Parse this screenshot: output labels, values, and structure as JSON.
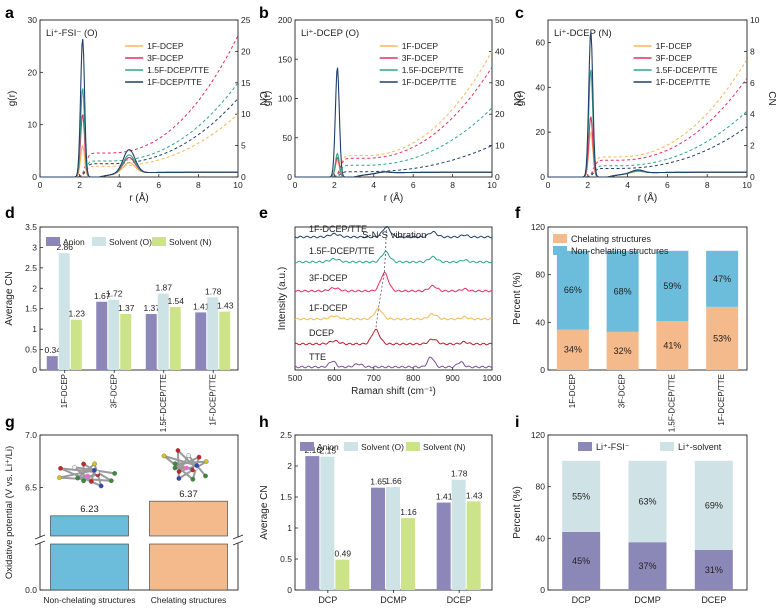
{
  "colors": {
    "f1": "#f5b75a",
    "f3": "#e2305f",
    "f15": "#2ea58a",
    "ftte": "#203f6a",
    "anion": "#8d86b8",
    "solvO": "#cde3e6",
    "solvN": "#cde38a",
    "chel": "#f4ba8b",
    "nonchel": "#6cbcdc",
    "fsi": "#8b88b8",
    "solv": "#cfe3e6"
  },
  "chart_data": [
    {
      "panel": "a",
      "type": "line",
      "title": "Li⁺-FSI⁻ (O)",
      "xlabel": "r (Å)",
      "ylabel": "g(r)",
      "y2label": "CN",
      "xlim": [
        0,
        10
      ],
      "xticks": [
        0,
        2,
        4,
        6,
        8,
        10
      ],
      "ylim": [
        0,
        30
      ],
      "yticks": [
        0,
        10,
        20,
        30
      ],
      "y2lim": [
        0,
        25
      ],
      "y2ticks": [
        0,
        5,
        10,
        15,
        20,
        25
      ],
      "legend": [
        "1F-DCEP",
        "3F-DCEP",
        "1.5F-DCEP/TTE",
        "1F-DCEP/TTE"
      ],
      "peaks": [
        6,
        12,
        17,
        26.5
      ],
      "second": [
        2.0,
        3.0,
        3.5,
        4.5
      ],
      "cn_end": [
        10,
        22.5,
        15,
        12.5
      ]
    },
    {
      "panel": "b",
      "type": "line",
      "title": "Li⁺-DCEP (O)",
      "xlabel": "r (Å)",
      "ylabel": "g(r)",
      "y2label": "CN",
      "xlim": [
        0,
        10
      ],
      "xticks": [
        0,
        2,
        4,
        6,
        8,
        10
      ],
      "ylim": [
        0,
        200
      ],
      "yticks": [
        0,
        50,
        100,
        150,
        200
      ],
      "y2lim": [
        0,
        50
      ],
      "y2ticks": [
        0,
        10,
        20,
        30,
        40,
        50
      ],
      "legend": [
        "1F-DCEP",
        "3F-DCEP",
        "1.5F-DCEP/TTE",
        "1F-DCEP/TTE"
      ],
      "peaks": [
        22,
        25,
        30,
        140
      ],
      "second": [
        1.5,
        2,
        2,
        1.5
      ],
      "cn_end": [
        40,
        35,
        22,
        10
      ]
    },
    {
      "panel": "c",
      "type": "line",
      "title": "Li⁺-DCEP (N)",
      "xlabel": "r (Å)",
      "ylabel": "g(r)",
      "y2label": "CN",
      "xlim": [
        0,
        10
      ],
      "xticks": [
        0,
        2,
        4,
        6,
        8,
        10
      ],
      "ylim": [
        0,
        70
      ],
      "yticks": [
        0,
        20,
        40,
        60
      ],
      "y2lim": [
        0,
        10
      ],
      "y2ticks": [
        0,
        2,
        4,
        6,
        8,
        10
      ],
      "legend": [
        "1F-DCEP",
        "3F-DCEP",
        "1.5F-DCEP/TTE",
        "1F-DCEP/TTE"
      ],
      "peaks": [
        20,
        27,
        48,
        65
      ],
      "second": [
        0.8,
        1,
        1,
        1.5
      ],
      "cn_end": [
        7.5,
        6.3,
        4.2,
        3.2
      ]
    },
    {
      "panel": "d",
      "type": "bar",
      "ylabel": "Average CN",
      "categories": [
        "1F-DCEP",
        "3F-DCEP",
        "1.5F-DCEP/TTE",
        "1F-DCEP/TTE"
      ],
      "ylim": [
        0,
        3.5
      ],
      "yticks": [
        0,
        0.5,
        1,
        1.5,
        2,
        2.5,
        3,
        3.5
      ],
      "series": [
        {
          "name": "Anion",
          "values": [
            0.34,
            1.67,
            1.37,
            1.41
          ],
          "labels": [
            "0.34",
            "1.67",
            "1.37",
            "1.41"
          ]
        },
        {
          "name": "Solvent (O)",
          "values": [
            2.86,
            1.72,
            1.87,
            1.78
          ],
          "labels": [
            "2.86",
            "1.72",
            "1.87",
            "1.78"
          ]
        },
        {
          "name": "Solvent (N)",
          "values": [
            1.23,
            1.37,
            1.54,
            1.43
          ],
          "labels": [
            "1.23",
            "1.37",
            "1.54",
            "1.43"
          ]
        }
      ]
    },
    {
      "panel": "e",
      "type": "line",
      "xlabel": "Raman shift (cm⁻¹)",
      "ylabel": "Intensity (a.u.)",
      "xlim": [
        500,
        1000
      ],
      "xticks": [
        500,
        600,
        700,
        800,
        900,
        1000
      ],
      "annotation": "S-N-S vibration",
      "traces": [
        "1F-DCEP/TTE",
        "1.5F-DCEP/TTE",
        "3F-DCEP",
        "1F-DCEP",
        "DCEP",
        "TTE"
      ],
      "trace_colors": [
        "#203f6a",
        "#2ea58a",
        "#e2305f",
        "#f5b75a",
        "#b81e2a",
        "#7d4f96"
      ],
      "peak_positions": [
        732,
        730,
        727,
        712,
        705,
        0
      ]
    },
    {
      "panel": "f",
      "type": "bar",
      "ylabel": "Percent (%)",
      "categories": [
        "1F-DCEP",
        "3F-DCEP",
        "1.5F-DCEP/TTE",
        "1F-DCEP/TTE"
      ],
      "ylim": [
        0,
        120
      ],
      "yticks": [
        0,
        40,
        80,
        120
      ],
      "series": [
        {
          "name": "Chelating structures",
          "values": [
            34,
            32,
            41,
            53
          ],
          "labels": [
            "34%",
            "32%",
            "41%",
            "53%"
          ]
        },
        {
          "name": "Non-chelating structures",
          "values": [
            66,
            68,
            59,
            47
          ],
          "labels": [
            "66%",
            "68%",
            "59%",
            "47%"
          ]
        }
      ]
    },
    {
      "panel": "g",
      "type": "bar",
      "ylabel": "Oxidative potential (V vs. Li⁺/Li)",
      "categories": [
        "Non-chelating structures",
        "Chelating structures"
      ],
      "ylim_upper": [
        6.0,
        7.0
      ],
      "ylim_lower": [
        0,
        0.5
      ],
      "yticks": [
        0.0,
        6.5,
        7.0
      ],
      "ytick_labels": [
        "0.0",
        "6.5",
        "7.0"
      ],
      "values": [
        6.23,
        6.37
      ],
      "labels": [
        "6.23",
        "6.37"
      ]
    },
    {
      "panel": "h",
      "type": "bar",
      "ylabel": "Average CN",
      "categories": [
        "DCP",
        "DCMP",
        "DCEP"
      ],
      "ylim": [
        0,
        2.5
      ],
      "yticks": [
        0,
        0.5,
        1,
        1.5,
        2,
        2.5
      ],
      "series": [
        {
          "name": "Anion",
          "values": [
            2.16,
            1.65,
            1.41
          ],
          "labels": [
            "2.16",
            "1.65",
            "1.41"
          ]
        },
        {
          "name": "Solvent (O)",
          "values": [
            2.15,
            1.66,
            1.78
          ],
          "labels": [
            "2.15",
            "1.66",
            "1.78"
          ]
        },
        {
          "name": "Solvent (N)",
          "values": [
            0.49,
            1.16,
            1.43
          ],
          "labels": [
            "0.49",
            "1.16",
            "1.43"
          ]
        }
      ]
    },
    {
      "panel": "i",
      "type": "bar",
      "ylabel": "Percent (%)",
      "categories": [
        "DCP",
        "DCMP",
        "DCEP"
      ],
      "ylim": [
        0,
        120
      ],
      "yticks": [
        0,
        40,
        80,
        120
      ],
      "series": [
        {
          "name": "Li⁺-FSI⁻",
          "values": [
            45,
            37,
            31
          ],
          "labels": [
            "45%",
            "37%",
            "31%"
          ]
        },
        {
          "name": "Li⁺-solvent",
          "values": [
            55,
            63,
            69
          ],
          "labels": [
            "55%",
            "63%",
            "69%"
          ]
        }
      ]
    }
  ]
}
